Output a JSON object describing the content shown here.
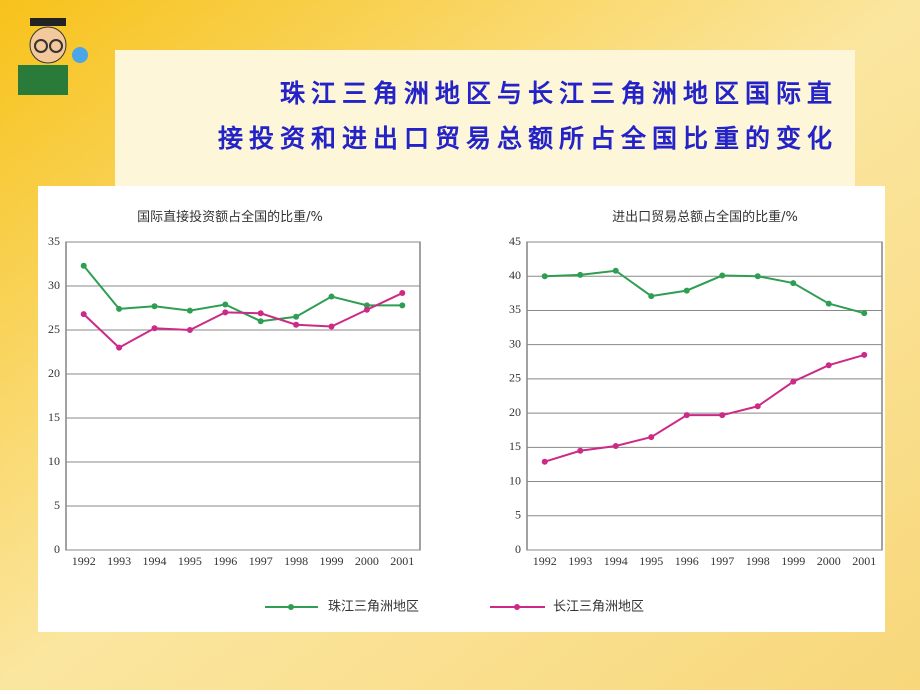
{
  "slide": {
    "title_lines": [
      "珠江三角洲地区与长江三角洲地区国际直",
      "接投资和进出口贸易总额所占全国比重的变化"
    ]
  },
  "chart_data": [
    {
      "type": "line",
      "title": "国际直接投资额占全国的比重/%",
      "categories": [
        "1992",
        "1993",
        "1994",
        "1995",
        "1996",
        "1997",
        "1998",
        "1999",
        "2000",
        "2001"
      ],
      "series": [
        {
          "name": "珠江三角洲地区",
          "color": "#2e9e52",
          "values": [
            32.3,
            27.4,
            27.7,
            27.2,
            27.9,
            26.0,
            26.5,
            28.8,
            27.8,
            27.8
          ]
        },
        {
          "name": "长江三角洲地区",
          "color": "#cc2a86",
          "values": [
            26.8,
            23.0,
            25.2,
            25.0,
            27.0,
            26.9,
            25.6,
            25.4,
            27.3,
            29.2
          ]
        }
      ],
      "ylim": [
        0,
        35
      ],
      "yticks": [
        0,
        5,
        10,
        15,
        20,
        25,
        30,
        35
      ],
      "grid": true
    },
    {
      "type": "line",
      "title": "进出口贸易总额占全国的比重/%",
      "categories": [
        "1992",
        "1993",
        "1994",
        "1995",
        "1996",
        "1997",
        "1998",
        "1999",
        "2000",
        "2001"
      ],
      "series": [
        {
          "color": "#2e9e52",
          "values": [
            40.0,
            40.2,
            40.8,
            37.1,
            37.9,
            40.1,
            40.0,
            39.0,
            36.0,
            34.6
          ]
        },
        {
          "color": "#cc2a86",
          "values": [
            12.9,
            14.5,
            15.2,
            16.5,
            19.7,
            19.7,
            21.0,
            24.6,
            27.0,
            28.5
          ]
        }
      ],
      "ylim": [
        0,
        45
      ],
      "yticks": [
        0,
        5,
        10,
        15,
        20,
        25,
        30,
        35,
        40,
        45
      ],
      "grid": true
    }
  ]
}
